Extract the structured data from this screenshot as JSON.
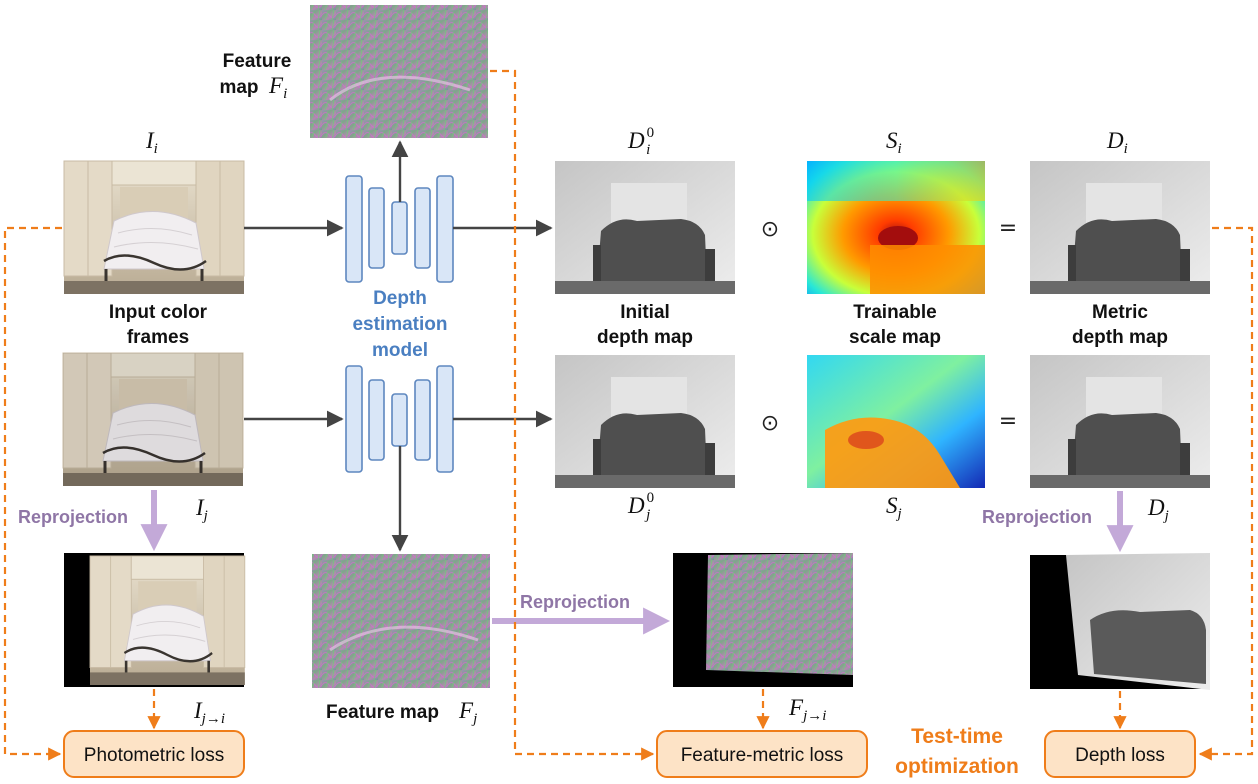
{
  "labels": {
    "feature_map_i_line1": "Feature",
    "feature_map_i_line2": "map",
    "input_frames_line1": "Input color",
    "input_frames_line2": "frames",
    "depth_model_line1": "Depth",
    "depth_model_line2": "estimation",
    "depth_model_line3": "model",
    "initial_depth_line1": "Initial",
    "initial_depth_line2": "depth map",
    "scale_map_line1": "Trainable",
    "scale_map_line2": "scale map",
    "metric_depth_line1": "Metric",
    "metric_depth_line2": "depth map",
    "feature_map_j": "Feature map",
    "reprojection_left": "Reprojection",
    "reprojection_middle": "Reprojection",
    "reprojection_right": "Reprojection",
    "tto_line1": "Test-time",
    "tto_line2": "optimization"
  },
  "symbols": {
    "I_i": {
      "base": "I",
      "sub": "i"
    },
    "I_j": {
      "base": "I",
      "sub": "j"
    },
    "I_ji": {
      "base": "I",
      "sub": "j→i"
    },
    "F_i": {
      "base": "F",
      "sub": "i"
    },
    "F_j": {
      "base": "F",
      "sub": "j"
    },
    "F_ji": {
      "base": "F",
      "sub": "j→i"
    },
    "D0_i": {
      "base": "D",
      "sub": "i",
      "sup": "0"
    },
    "D0_j": {
      "base": "D",
      "sub": "j",
      "sup": "0"
    },
    "S_i": {
      "base": "S",
      "sub": "i"
    },
    "S_j": {
      "base": "S",
      "sub": "j"
    },
    "D_i": {
      "base": "D",
      "sub": "i"
    },
    "D_j": {
      "base": "D",
      "sub": "j"
    }
  },
  "operators": {
    "hadamard": "⊙",
    "equals": "="
  },
  "losses": {
    "photometric": "Photometric loss",
    "feature_metric": "Feature-metric loss",
    "depth": "Depth loss"
  },
  "colors": {
    "orange": "#ef7d1a",
    "loss_fill": "#fde3c6",
    "purple": "#c3a9d8",
    "purple_text": "#8f76a6",
    "model_blue": "#4a7fc1",
    "net_fill": "#d9e6f7"
  }
}
